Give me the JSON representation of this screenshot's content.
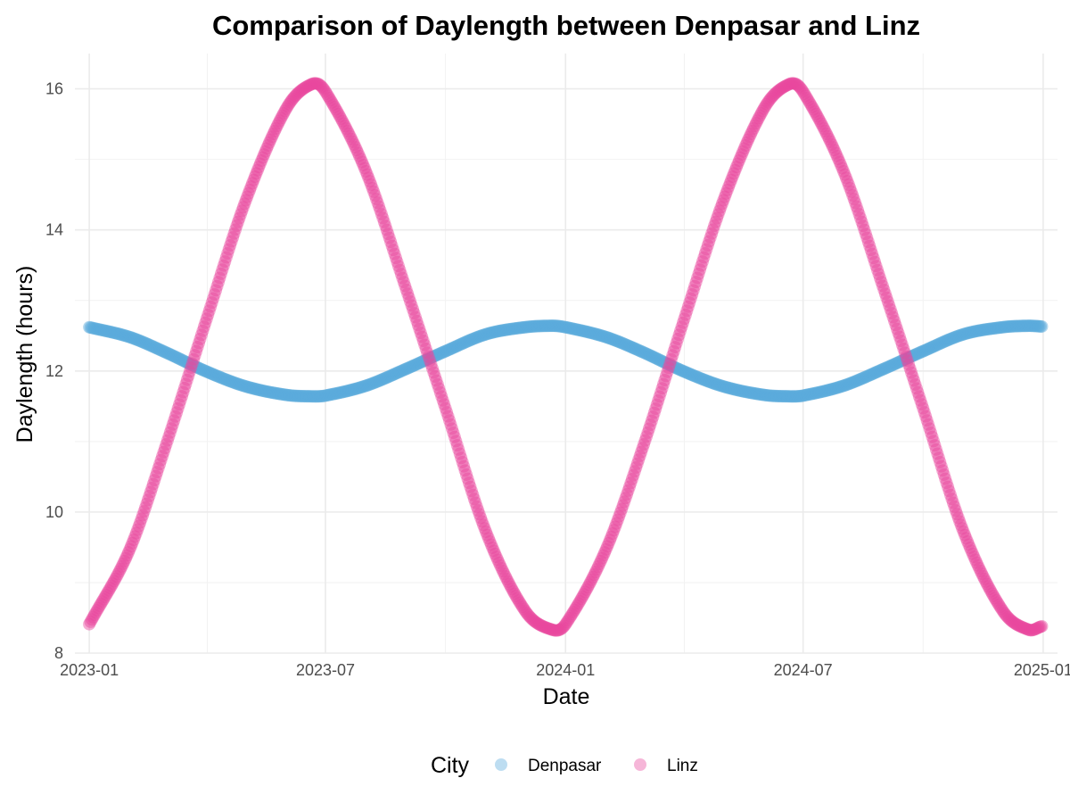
{
  "chart_data": {
    "type": "scatter",
    "title": "Comparison of Daylength between Denpasar and Linz",
    "xlabel": "Date",
    "ylabel": "Daylength (hours)",
    "xlim": [
      "2022-12-21",
      "2025-01-12"
    ],
    "ylim": [
      8,
      16.5
    ],
    "x_ticks": [
      "2023-01",
      "2023-07",
      "2024-01",
      "2024-07",
      "2025-01"
    ],
    "y_ticks": [
      8,
      10,
      12,
      14,
      16
    ],
    "grid": true,
    "legend": {
      "title": "City",
      "position": "bottom",
      "entries": [
        "Denpasar",
        "Linz"
      ]
    },
    "series": [
      {
        "name": "Denpasar",
        "color": "#5aaadc",
        "x": [
          "2023-01-01",
          "2023-02-01",
          "2023-03-01",
          "2023-04-01",
          "2023-05-01",
          "2023-06-01",
          "2023-06-21",
          "2023-07-01",
          "2023-08-01",
          "2023-09-01",
          "2023-10-01",
          "2023-11-01",
          "2023-12-01",
          "2023-12-22",
          "2024-01-01",
          "2024-02-01",
          "2024-03-01",
          "2024-04-01",
          "2024-05-01",
          "2024-06-01",
          "2024-06-21",
          "2024-07-01",
          "2024-08-01",
          "2024-09-01",
          "2024-10-01",
          "2024-11-01",
          "2024-12-01",
          "2024-12-21",
          "2024-12-31"
        ],
        "y": [
          12.62,
          12.48,
          12.26,
          11.99,
          11.78,
          11.66,
          11.64,
          11.65,
          11.79,
          12.03,
          12.28,
          12.52,
          12.62,
          12.64,
          12.62,
          12.48,
          12.26,
          11.99,
          11.78,
          11.66,
          11.64,
          11.65,
          11.79,
          12.03,
          12.28,
          12.52,
          12.62,
          12.64,
          12.63
        ]
      },
      {
        "name": "Linz",
        "color": "#e8489d",
        "x": [
          "2023-01-01",
          "2023-02-01",
          "2023-03-01",
          "2023-04-01",
          "2023-05-01",
          "2023-06-01",
          "2023-06-21",
          "2023-07-01",
          "2023-08-01",
          "2023-09-01",
          "2023-10-01",
          "2023-11-01",
          "2023-12-01",
          "2023-12-22",
          "2024-01-01",
          "2024-02-01",
          "2024-03-01",
          "2024-04-01",
          "2024-05-01",
          "2024-06-01",
          "2024-06-21",
          "2024-07-01",
          "2024-08-01",
          "2024-09-01",
          "2024-10-01",
          "2024-11-01",
          "2024-12-01",
          "2024-12-21",
          "2024-12-31"
        ],
        "y": [
          8.41,
          9.47,
          10.96,
          12.74,
          14.42,
          15.72,
          16.07,
          15.96,
          14.83,
          13.15,
          11.47,
          9.72,
          8.6,
          8.33,
          8.41,
          9.47,
          10.96,
          12.74,
          14.42,
          15.72,
          16.07,
          15.96,
          14.83,
          13.15,
          11.47,
          9.72,
          8.6,
          8.33,
          8.38
        ]
      }
    ]
  }
}
